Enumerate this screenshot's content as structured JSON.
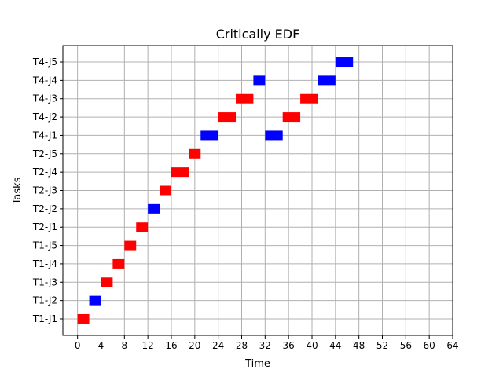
{
  "chart_data": {
    "type": "gantt",
    "title": "Critically EDF",
    "xlabel": "Time",
    "ylabel": "Tasks",
    "xlim": [
      -2.5,
      64
    ],
    "xticks": [
      0,
      4,
      8,
      12,
      16,
      20,
      24,
      28,
      32,
      36,
      40,
      44,
      48,
      52,
      56,
      60,
      64
    ],
    "grid": true,
    "categories": [
      "T1-J1",
      "T1-J2",
      "T1-J3",
      "T1-J4",
      "T1-J5",
      "T2-J1",
      "T2-J2",
      "T2-J3",
      "T2-J4",
      "T2-J5",
      "T4-J1",
      "T4-J2",
      "T4-J3",
      "T4-J4",
      "T4-J5"
    ],
    "colors": {
      "red": "#ff0000",
      "blue": "#0000ff"
    },
    "bars": [
      {
        "task": "T1-J1",
        "start": 0,
        "end": 2,
        "color": "red"
      },
      {
        "task": "T1-J2",
        "start": 2,
        "end": 4,
        "color": "blue"
      },
      {
        "task": "T1-J3",
        "start": 4,
        "end": 6,
        "color": "red"
      },
      {
        "task": "T1-J4",
        "start": 6,
        "end": 8,
        "color": "red"
      },
      {
        "task": "T1-J5",
        "start": 8,
        "end": 10,
        "color": "red"
      },
      {
        "task": "T2-J1",
        "start": 10,
        "end": 12,
        "color": "red"
      },
      {
        "task": "T2-J2",
        "start": 12,
        "end": 14,
        "color": "blue"
      },
      {
        "task": "T2-J3",
        "start": 14,
        "end": 16,
        "color": "red"
      },
      {
        "task": "T2-J4",
        "start": 16,
        "end": 19,
        "color": "red"
      },
      {
        "task": "T2-J5",
        "start": 19,
        "end": 21,
        "color": "red"
      },
      {
        "task": "T4-J1",
        "start": 21,
        "end": 24,
        "color": "blue"
      },
      {
        "task": "T4-J2",
        "start": 24,
        "end": 27,
        "color": "red"
      },
      {
        "task": "T4-J3",
        "start": 27,
        "end": 30,
        "color": "red"
      },
      {
        "task": "T4-J4",
        "start": 30,
        "end": 32,
        "color": "blue"
      },
      {
        "task": "T4-J1",
        "start": 32,
        "end": 35,
        "color": "blue"
      },
      {
        "task": "T4-J2",
        "start": 35,
        "end": 38,
        "color": "red"
      },
      {
        "task": "T4-J3",
        "start": 38,
        "end": 41,
        "color": "red"
      },
      {
        "task": "T4-J4",
        "start": 41,
        "end": 44,
        "color": "blue"
      },
      {
        "task": "T4-J5",
        "start": 44,
        "end": 47,
        "color": "blue"
      }
    ]
  }
}
